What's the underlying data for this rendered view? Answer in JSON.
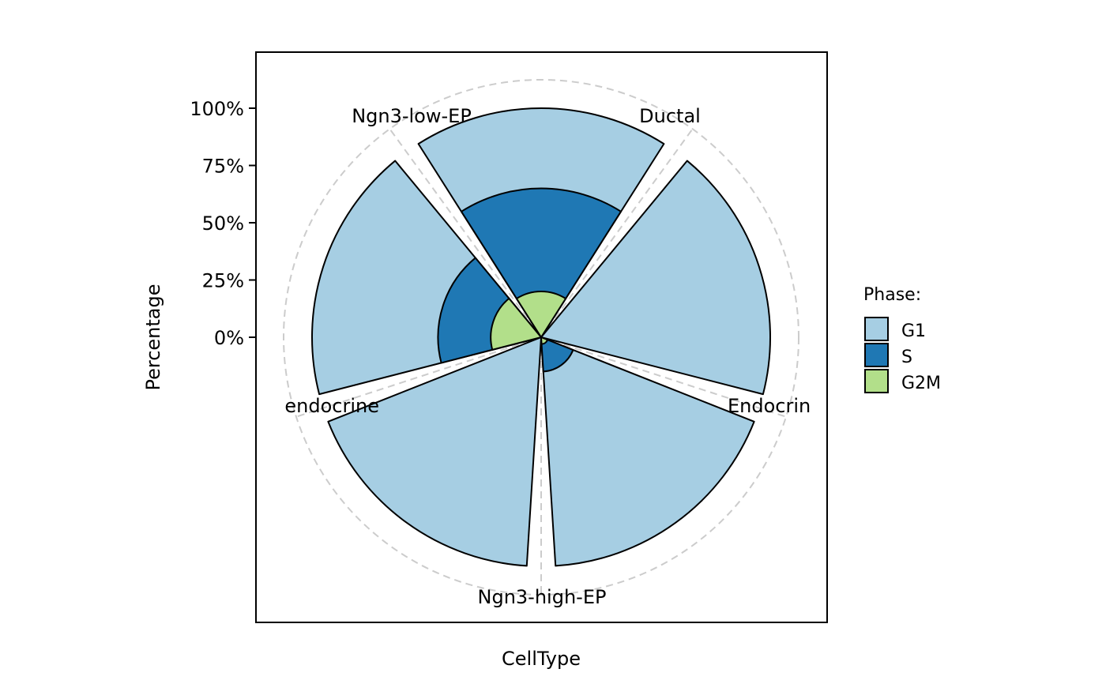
{
  "chart_data": {
    "type": "bar",
    "coord": "polar",
    "xlabel": "CellType",
    "ylabel": "Percentage",
    "categories": [
      "Ductal",
      "Endocrine",
      "Ngn3-high-EP",
      "Pre-endocrine",
      "Ngn3-low-EP"
    ],
    "category_labels_shown": [
      "Ductal",
      "Endocrin",
      "Ngn3-high-EP",
      "endocrine",
      "Ngn3-low-EP"
    ],
    "series": [
      {
        "name": "G1",
        "values": [
          35,
          100,
          85,
          100,
          55
        ],
        "color": "#a6cee3"
      },
      {
        "name": "S",
        "values": [
          45,
          0,
          12,
          0,
          23
        ],
        "color": "#1f78b4"
      },
      {
        "name": "G2M",
        "values": [
          20,
          0,
          3,
          0,
          22
        ],
        "color": "#b2df8a"
      }
    ],
    "stacked": true,
    "ylim": [
      0,
      100
    ],
    "yticks": [
      "0%",
      "25%",
      "50%",
      "75%",
      "100%"
    ],
    "legend": {
      "title": "Phase:",
      "position": "right",
      "items": [
        "G1",
        "S",
        "G2M"
      ]
    },
    "grid": true
  }
}
